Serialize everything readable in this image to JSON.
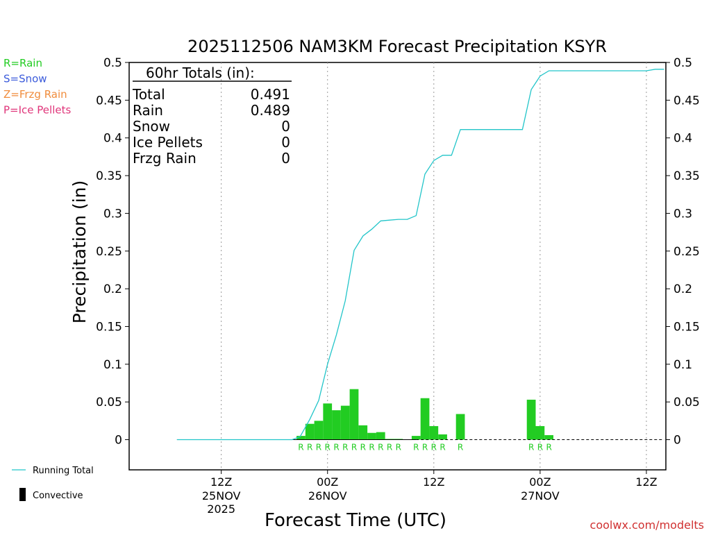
{
  "chart_data": {
    "type": "bar",
    "title": "2025112506 NAM3KM Forecast Precipitation KSYR",
    "xlabel": "Forecast Time (UTC)",
    "ylabel": "Precipitation (in)",
    "ylim": [
      -0.04,
      0.5
    ],
    "yticks": [
      "0.5",
      "0.45",
      "0.4",
      "0.35",
      "0.3",
      "0.25",
      "0.2",
      "0.15",
      "0.1",
      "0.05",
      "0"
    ],
    "ytick_values": [
      0.5,
      0.45,
      0.4,
      0.35,
      0.3,
      0.25,
      0.2,
      0.15,
      0.1,
      0.05,
      0
    ],
    "xlim_hours": [
      -4.4,
      56.2
    ],
    "grid_x_hours": [
      6,
      18,
      30,
      42,
      54
    ],
    "xticks": [
      {
        "hour": 6,
        "label": "12Z",
        "date": "25NOV",
        "year": "2025"
      },
      {
        "hour": 18,
        "label": "00Z",
        "date": "26NOV"
      },
      {
        "hour": 30,
        "label": "12Z"
      },
      {
        "hour": 42,
        "label": "00Z",
        "date": "27NOV"
      },
      {
        "hour": 54,
        "label": "12Z"
      }
    ],
    "legend_types": [
      {
        "label": "R=Rain",
        "color": "#22cc22"
      },
      {
        "label": "S=Snow",
        "color": "#3b5bdb"
      },
      {
        "label": "Z=Frzg Rain",
        "color": "#f08c3c"
      },
      {
        "label": "P=Ice Pellets",
        "color": "#e0357a"
      }
    ],
    "legend_series": [
      {
        "label": "Running Total",
        "kind": "line",
        "color": "#22c5c9"
      },
      {
        "label": "Convective",
        "kind": "bar",
        "color": "#000000"
      }
    ],
    "totals": {
      "header": "60hr Totals (in):",
      "rows": [
        {
          "label": "Total",
          "value": "0.491"
        },
        {
          "label": "Rain",
          "value": "0.489"
        },
        {
          "label": "Snow",
          "value": "0"
        },
        {
          "label": "Ice Pellets",
          "value": "0"
        },
        {
          "label": "Frzg Rain",
          "value": "0"
        }
      ]
    },
    "bars": [
      {
        "hour": 15,
        "value": 0.005,
        "type": "R"
      },
      {
        "hour": 16,
        "value": 0.021,
        "type": "R"
      },
      {
        "hour": 17,
        "value": 0.025,
        "type": "R"
      },
      {
        "hour": 18,
        "value": 0.048,
        "type": "R"
      },
      {
        "hour": 19,
        "value": 0.039,
        "type": "R"
      },
      {
        "hour": 20,
        "value": 0.045,
        "type": "R"
      },
      {
        "hour": 21,
        "value": 0.067,
        "type": "R"
      },
      {
        "hour": 22,
        "value": 0.019,
        "type": "R"
      },
      {
        "hour": 23,
        "value": 0.009,
        "type": "R"
      },
      {
        "hour": 24,
        "value": 0.01,
        "type": "R"
      },
      {
        "hour": 25,
        "value": 0.001,
        "type": "R"
      },
      {
        "hour": 26,
        "value": 0.001,
        "type": "R"
      },
      {
        "hour": 28,
        "value": 0.005,
        "type": "R"
      },
      {
        "hour": 29,
        "value": 0.055,
        "type": "R"
      },
      {
        "hour": 30,
        "value": 0.018,
        "type": "R"
      },
      {
        "hour": 31,
        "value": 0.007,
        "type": "R"
      },
      {
        "hour": 33,
        "value": 0.034,
        "type": "R"
      },
      {
        "hour": 41,
        "value": 0.053,
        "type": "R"
      },
      {
        "hour": 42,
        "value": 0.018,
        "type": "R"
      },
      {
        "hour": 43,
        "value": 0.006,
        "type": "R"
      }
    ],
    "running_total": {
      "hours": [
        1,
        14,
        14.9,
        16,
        17,
        18,
        19,
        20,
        21,
        22,
        23,
        24,
        25,
        26,
        27,
        28,
        29,
        30,
        31,
        32,
        33,
        34,
        40,
        41,
        42,
        43,
        54,
        55,
        56
      ],
      "values": [
        0,
        0,
        0.004,
        0.027,
        0.052,
        0.1,
        0.139,
        0.184,
        0.251,
        0.27,
        0.279,
        0.29,
        0.291,
        0.292,
        0.292,
        0.297,
        0.352,
        0.37,
        0.377,
        0.377,
        0.411,
        0.411,
        0.411,
        0.464,
        0.482,
        0.489,
        0.489,
        0.491,
        0.491
      ]
    },
    "baseline_dashed_from_hour": 28,
    "watermark": "coolwx.com/modelts"
  }
}
